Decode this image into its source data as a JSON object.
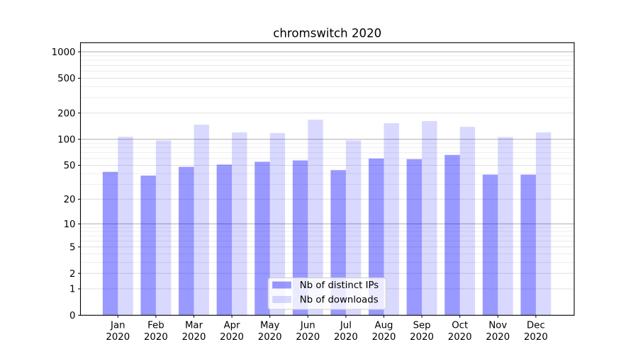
{
  "chart_data": {
    "type": "bar",
    "title": "chromswitch 2020",
    "categories": [
      "Jan",
      "Feb",
      "Mar",
      "Apr",
      "May",
      "Jun",
      "Jul",
      "Aug",
      "Sep",
      "Oct",
      "Nov",
      "Dec"
    ],
    "category_year": "2020",
    "series": [
      {
        "name": "Nb of distinct IPs",
        "color": "#0000ff",
        "opacity": 0.4,
        "values": [
          42,
          38,
          48,
          51,
          55,
          57,
          44,
          60,
          59,
          66,
          39,
          39
        ]
      },
      {
        "name": "Nb of downloads",
        "color": "#0000ff",
        "opacity": 0.15,
        "values": [
          107,
          97,
          147,
          120,
          118,
          168,
          97,
          153,
          162,
          139,
          106,
          120
        ]
      }
    ],
    "xlabel": "",
    "ylabel": "",
    "yscale": "log1p",
    "ylim": [
      0,
      1270
    ],
    "yticks": [
      0,
      1,
      2,
      5,
      10,
      20,
      50,
      100,
      200,
      500,
      1000
    ],
    "ytick_labels": [
      "0",
      "1",
      "2",
      "5",
      "10",
      "20",
      "50",
      "100",
      "200",
      "500",
      "1000"
    ],
    "major_grid_values": [
      10,
      100,
      1000
    ],
    "tick_grid_values": [
      1,
      2,
      5,
      20,
      50,
      200,
      500
    ],
    "minor_grid_values": [
      3,
      4,
      6,
      7,
      8,
      9,
      30,
      40,
      60,
      70,
      80,
      90,
      300,
      400,
      600,
      700,
      800,
      900
    ],
    "grid": true,
    "legend_position": "lower center",
    "colors": {
      "background": "#ffffff",
      "spine": "#000000",
      "tick_text": "#000000",
      "title_text": "#000000",
      "major_grid": "#ababab",
      "tick_grid": "#dcdcdc",
      "minor_grid": "#ebebeb",
      "legend_border": "#cccccc",
      "legend_fill": "rgba(255,255,255,0.8)"
    }
  }
}
